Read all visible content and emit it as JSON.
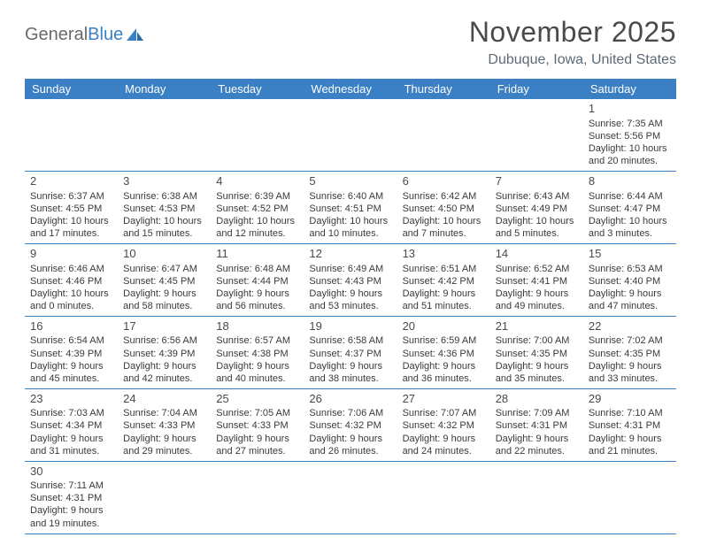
{
  "logo": {
    "text_gray": "General",
    "text_blue": "Blue"
  },
  "title": "November 2025",
  "location": "Dubuque, Iowa, United States",
  "weekday_header_bg": "#3b7fc4",
  "weekday_header_fg": "#ffffff",
  "cell_border_color": "#3b7fc4",
  "body_text_color": "#3a3a3a",
  "weekdays": [
    "Sunday",
    "Monday",
    "Tuesday",
    "Wednesday",
    "Thursday",
    "Friday",
    "Saturday"
  ],
  "weeks": [
    [
      null,
      null,
      null,
      null,
      null,
      null,
      {
        "n": "1",
        "rise": "7:35 AM",
        "set": "5:56 PM",
        "day": "10 hours and 20 minutes."
      }
    ],
    [
      {
        "n": "2",
        "rise": "6:37 AM",
        "set": "4:55 PM",
        "day": "10 hours and 17 minutes."
      },
      {
        "n": "3",
        "rise": "6:38 AM",
        "set": "4:53 PM",
        "day": "10 hours and 15 minutes."
      },
      {
        "n": "4",
        "rise": "6:39 AM",
        "set": "4:52 PM",
        "day": "10 hours and 12 minutes."
      },
      {
        "n": "5",
        "rise": "6:40 AM",
        "set": "4:51 PM",
        "day": "10 hours and 10 minutes."
      },
      {
        "n": "6",
        "rise": "6:42 AM",
        "set": "4:50 PM",
        "day": "10 hours and 7 minutes."
      },
      {
        "n": "7",
        "rise": "6:43 AM",
        "set": "4:49 PM",
        "day": "10 hours and 5 minutes."
      },
      {
        "n": "8",
        "rise": "6:44 AM",
        "set": "4:47 PM",
        "day": "10 hours and 3 minutes."
      }
    ],
    [
      {
        "n": "9",
        "rise": "6:46 AM",
        "set": "4:46 PM",
        "day": "10 hours and 0 minutes."
      },
      {
        "n": "10",
        "rise": "6:47 AM",
        "set": "4:45 PM",
        "day": "9 hours and 58 minutes."
      },
      {
        "n": "11",
        "rise": "6:48 AM",
        "set": "4:44 PM",
        "day": "9 hours and 56 minutes."
      },
      {
        "n": "12",
        "rise": "6:49 AM",
        "set": "4:43 PM",
        "day": "9 hours and 53 minutes."
      },
      {
        "n": "13",
        "rise": "6:51 AM",
        "set": "4:42 PM",
        "day": "9 hours and 51 minutes."
      },
      {
        "n": "14",
        "rise": "6:52 AM",
        "set": "4:41 PM",
        "day": "9 hours and 49 minutes."
      },
      {
        "n": "15",
        "rise": "6:53 AM",
        "set": "4:40 PM",
        "day": "9 hours and 47 minutes."
      }
    ],
    [
      {
        "n": "16",
        "rise": "6:54 AM",
        "set": "4:39 PM",
        "day": "9 hours and 45 minutes."
      },
      {
        "n": "17",
        "rise": "6:56 AM",
        "set": "4:39 PM",
        "day": "9 hours and 42 minutes."
      },
      {
        "n": "18",
        "rise": "6:57 AM",
        "set": "4:38 PM",
        "day": "9 hours and 40 minutes."
      },
      {
        "n": "19",
        "rise": "6:58 AM",
        "set": "4:37 PM",
        "day": "9 hours and 38 minutes."
      },
      {
        "n": "20",
        "rise": "6:59 AM",
        "set": "4:36 PM",
        "day": "9 hours and 36 minutes."
      },
      {
        "n": "21",
        "rise": "7:00 AM",
        "set": "4:35 PM",
        "day": "9 hours and 35 minutes."
      },
      {
        "n": "22",
        "rise": "7:02 AM",
        "set": "4:35 PM",
        "day": "9 hours and 33 minutes."
      }
    ],
    [
      {
        "n": "23",
        "rise": "7:03 AM",
        "set": "4:34 PM",
        "day": "9 hours and 31 minutes."
      },
      {
        "n": "24",
        "rise": "7:04 AM",
        "set": "4:33 PM",
        "day": "9 hours and 29 minutes."
      },
      {
        "n": "25",
        "rise": "7:05 AM",
        "set": "4:33 PM",
        "day": "9 hours and 27 minutes."
      },
      {
        "n": "26",
        "rise": "7:06 AM",
        "set": "4:32 PM",
        "day": "9 hours and 26 minutes."
      },
      {
        "n": "27",
        "rise": "7:07 AM",
        "set": "4:32 PM",
        "day": "9 hours and 24 minutes."
      },
      {
        "n": "28",
        "rise": "7:09 AM",
        "set": "4:31 PM",
        "day": "9 hours and 22 minutes."
      },
      {
        "n": "29",
        "rise": "7:10 AM",
        "set": "4:31 PM",
        "day": "9 hours and 21 minutes."
      }
    ],
    [
      {
        "n": "30",
        "rise": "7:11 AM",
        "set": "4:31 PM",
        "day": "9 hours and 19 minutes."
      },
      null,
      null,
      null,
      null,
      null,
      null
    ]
  ],
  "labels": {
    "sunrise": "Sunrise: ",
    "sunset": "Sunset: ",
    "daylight": "Daylight: "
  }
}
